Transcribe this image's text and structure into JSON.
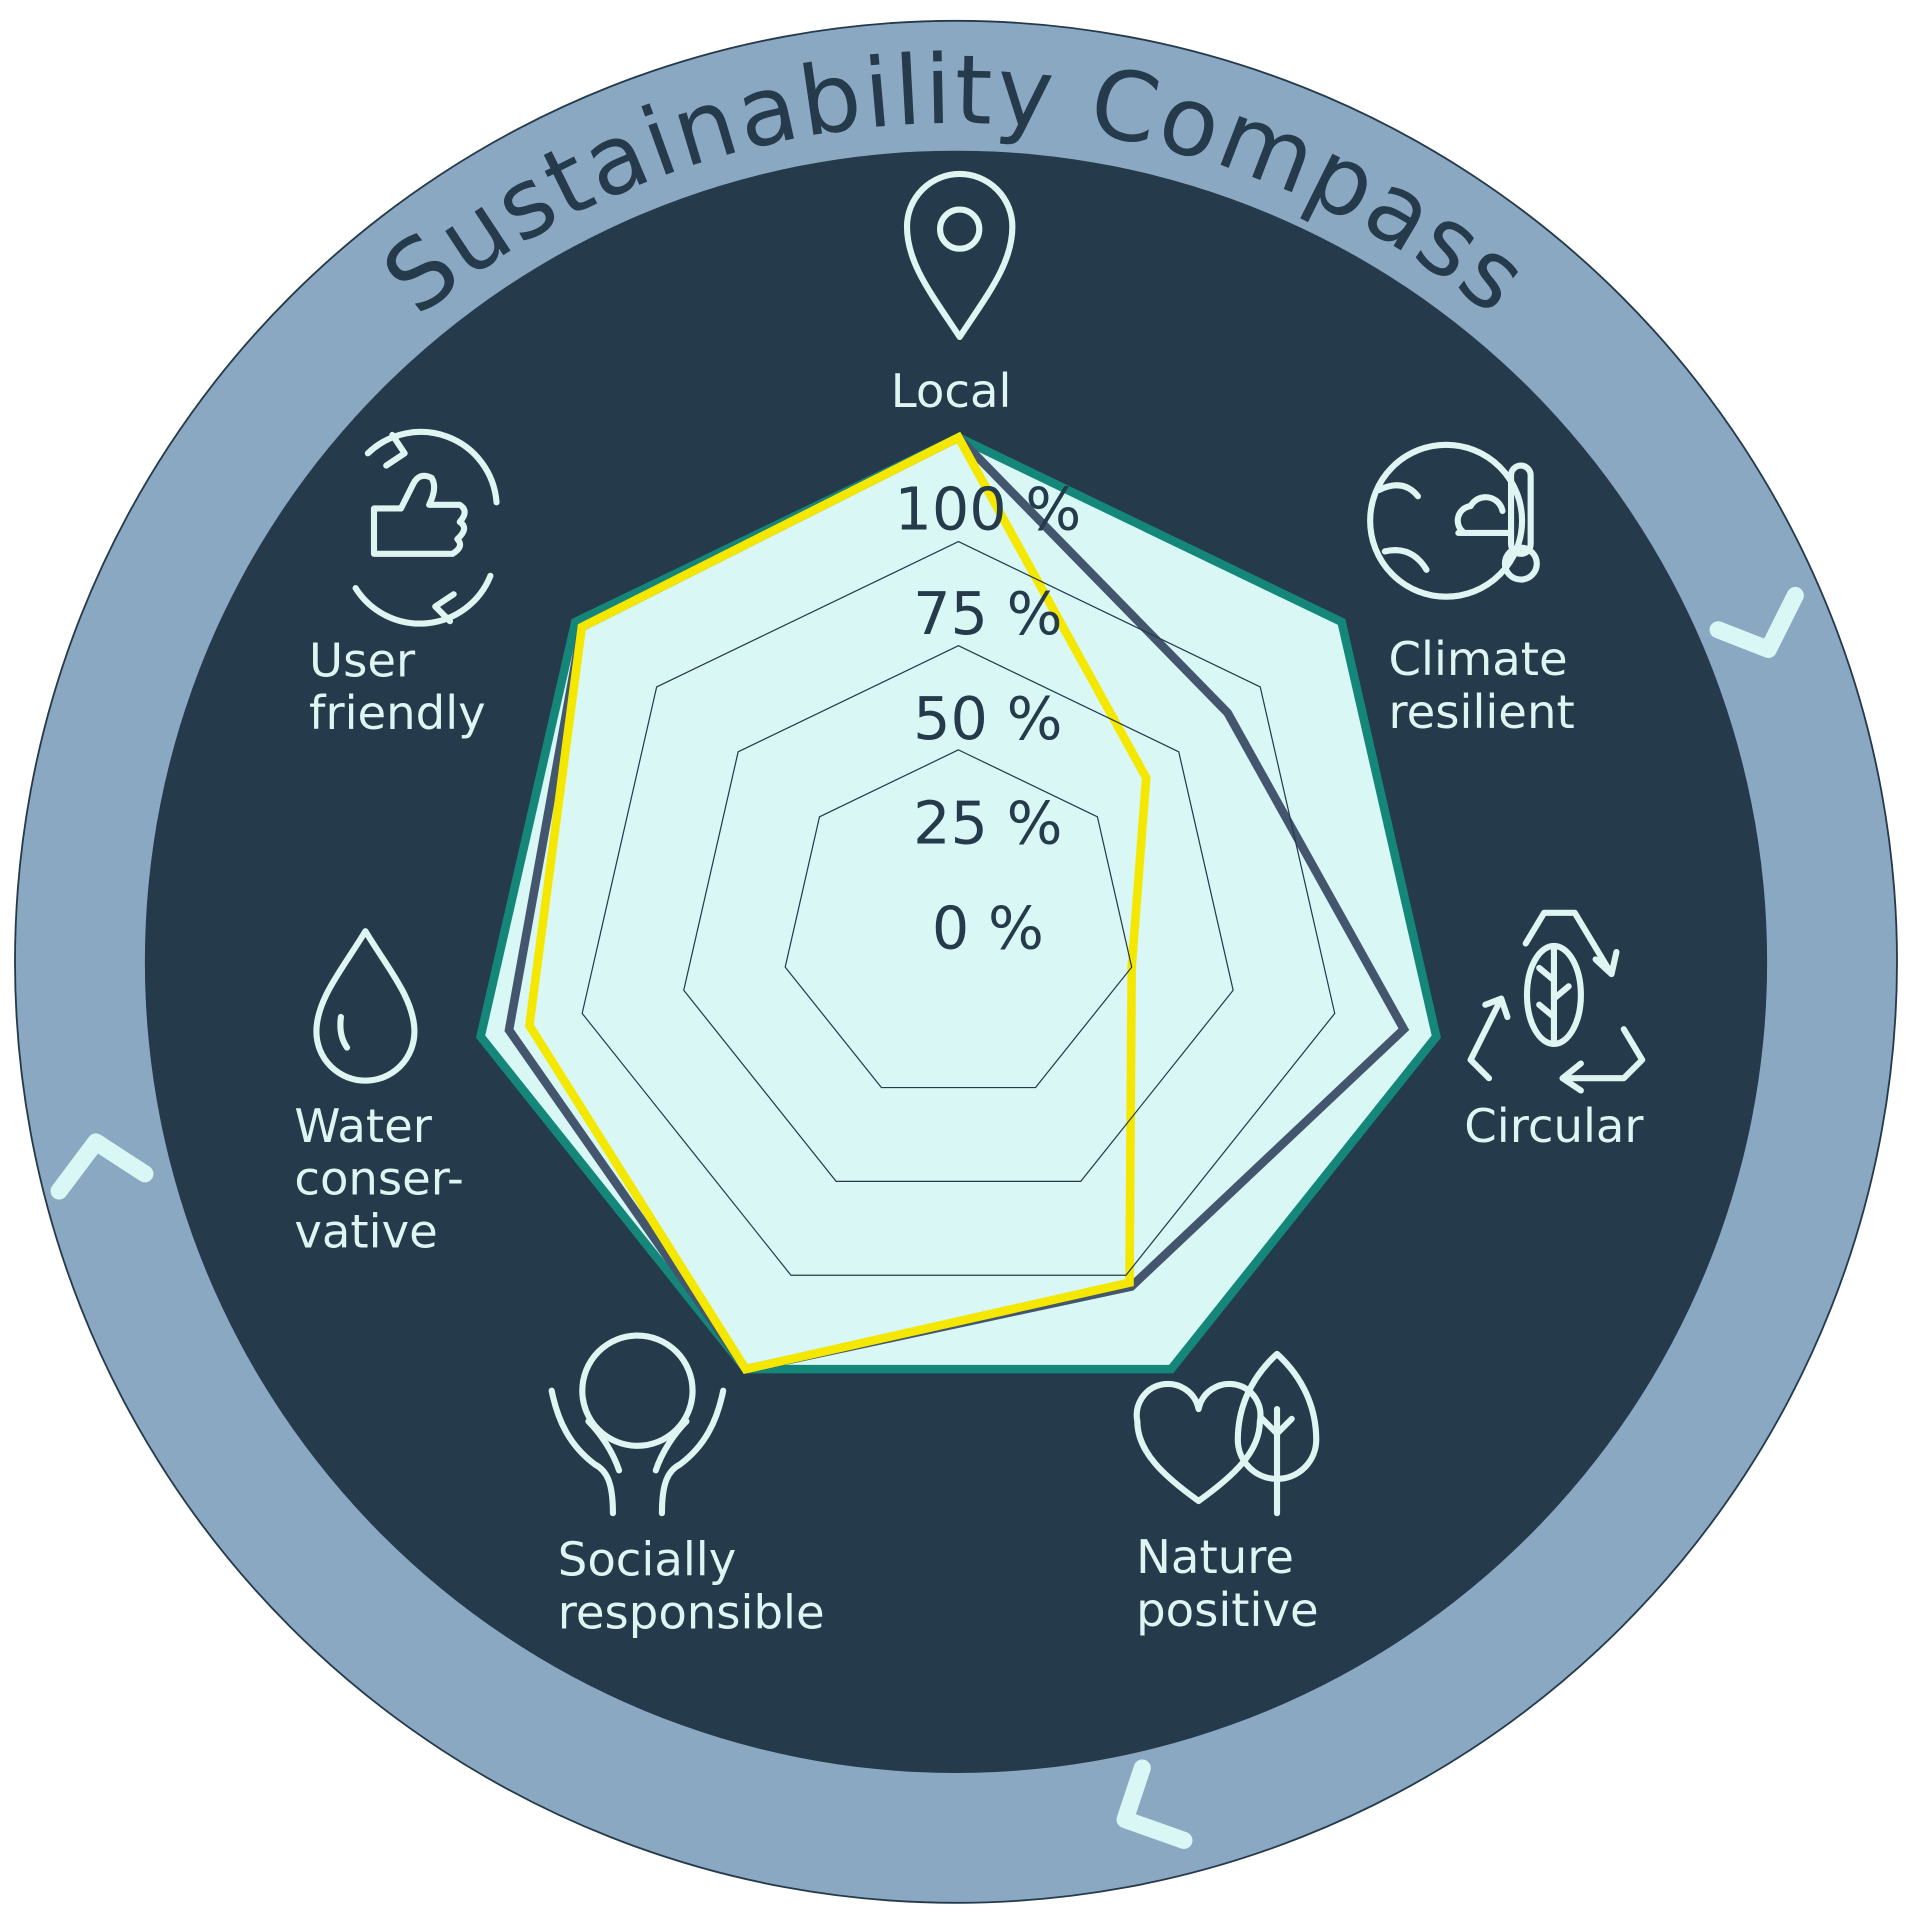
{
  "chart_data": {
    "type": "radar",
    "title": "Sustainability Compass",
    "categories": [
      [
        "Local"
      ],
      [
        "Climate",
        "resilient"
      ],
      [
        "Circular"
      ],
      [
        "Nature",
        "positive"
      ],
      [
        "Socially",
        "responsible"
      ],
      [
        "Water",
        "conser-",
        "vative"
      ],
      [
        "User",
        "friendly"
      ]
    ],
    "ylim": [
      0,
      100
    ],
    "yticks": [
      {
        "value": 0,
        "label": "0 %"
      },
      {
        "value": 25,
        "label": "25 %"
      },
      {
        "value": 50,
        "label": "50 %"
      },
      {
        "value": 75,
        "label": "75 %"
      },
      {
        "value": 100,
        "label": "100 %"
      }
    ],
    "grid": true,
    "series": [
      {
        "color": "#14867a",
        "fill": "#d9f7f4",
        "values": [
          100,
          100,
          100,
          100,
          100,
          100,
          100
        ]
      },
      {
        "color": "#44566e",
        "values": [
          100,
          65,
          92,
          78,
          100,
          93,
          98
        ]
      },
      {
        "color": "#f5e800",
        "values": [
          100,
          40,
          25,
          77,
          100,
          88,
          98
        ]
      }
    ]
  }
}
